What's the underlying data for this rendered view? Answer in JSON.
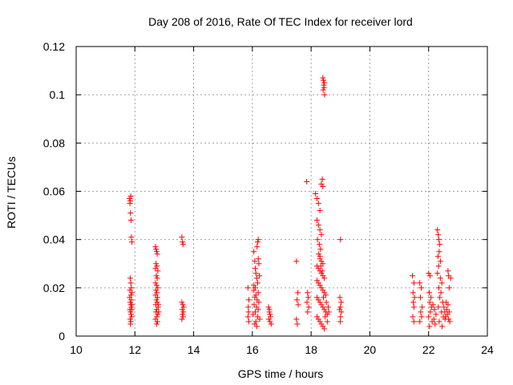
{
  "chart_data": {
    "type": "scatter",
    "title": "Day 208 of 2016, Rate Of TEC Index for receiver lord",
    "xlabel": "GPS time / hours",
    "ylabel": "ROTI / TECUs",
    "xlim": [
      10,
      24
    ],
    "ylim": [
      0,
      0.12
    ],
    "xticks": [
      "10",
      "12",
      "14",
      "16",
      "18",
      "20",
      "22",
      "24"
    ],
    "yticks": [
      "0",
      "0.02",
      "0.04",
      "0.06",
      "0.08",
      "0.1",
      "0.12"
    ],
    "grid": true,
    "marker": "+",
    "marker_color": "#ff0000",
    "series": [
      {
        "points": [
          [
            11.82,
            0.057
          ],
          [
            11.84,
            0.056
          ],
          [
            11.86,
            0.058
          ],
          [
            11.83,
            0.055
          ],
          [
            11.85,
            0.051
          ],
          [
            11.87,
            0.048
          ],
          [
            11.88,
            0.041
          ],
          [
            11.9,
            0.039
          ],
          [
            11.84,
            0.024
          ],
          [
            11.86,
            0.022
          ],
          [
            11.88,
            0.02
          ],
          [
            11.9,
            0.018
          ],
          [
            11.82,
            0.016
          ],
          [
            11.84,
            0.014
          ],
          [
            11.86,
            0.013
          ],
          [
            11.88,
            0.012
          ],
          [
            11.83,
            0.011
          ],
          [
            11.85,
            0.01
          ],
          [
            11.87,
            0.009
          ],
          [
            11.89,
            0.008
          ],
          [
            11.84,
            0.007
          ],
          [
            11.86,
            0.006
          ],
          [
            11.85,
            0.005
          ],
          [
            11.88,
            0.015
          ],
          [
            11.9,
            0.013
          ],
          [
            11.83,
            0.019
          ],
          [
            11.87,
            0.017
          ],
          [
            11.9,
            0.011
          ],
          [
            12.7,
            0.037
          ],
          [
            12.72,
            0.036
          ],
          [
            12.74,
            0.035
          ],
          [
            12.76,
            0.034
          ],
          [
            12.72,
            0.03
          ],
          [
            12.75,
            0.029
          ],
          [
            12.7,
            0.028
          ],
          [
            12.78,
            0.027
          ],
          [
            12.73,
            0.025
          ],
          [
            12.76,
            0.024
          ],
          [
            12.7,
            0.022
          ],
          [
            12.74,
            0.021
          ],
          [
            12.78,
            0.02
          ],
          [
            12.72,
            0.019
          ],
          [
            12.75,
            0.018
          ],
          [
            12.7,
            0.017
          ],
          [
            12.77,
            0.016
          ],
          [
            12.73,
            0.015
          ],
          [
            12.76,
            0.014
          ],
          [
            12.71,
            0.013
          ],
          [
            12.79,
            0.012
          ],
          [
            12.74,
            0.011
          ],
          [
            12.72,
            0.01
          ],
          [
            12.78,
            0.009
          ],
          [
            12.75,
            0.008
          ],
          [
            12.7,
            0.007
          ],
          [
            12.77,
            0.006
          ],
          [
            12.74,
            0.005
          ],
          [
            12.8,
            0.013
          ],
          [
            12.81,
            0.01
          ],
          [
            13.6,
            0.041
          ],
          [
            13.62,
            0.039
          ],
          [
            13.64,
            0.038
          ],
          [
            13.6,
            0.014
          ],
          [
            13.63,
            0.013
          ],
          [
            13.66,
            0.012
          ],
          [
            13.61,
            0.011
          ],
          [
            13.65,
            0.01
          ],
          [
            13.62,
            0.009
          ],
          [
            13.64,
            0.008
          ],
          [
            13.6,
            0.007
          ],
          [
            15.85,
            0.02
          ],
          [
            15.88,
            0.015
          ],
          [
            15.86,
            0.012
          ],
          [
            15.87,
            0.01
          ],
          [
            15.85,
            0.008
          ],
          [
            15.88,
            0.006
          ],
          [
            16.05,
            0.035
          ],
          [
            16.08,
            0.031
          ],
          [
            16.1,
            0.028
          ],
          [
            16.12,
            0.026
          ],
          [
            16.15,
            0.024
          ],
          [
            16.18,
            0.022
          ],
          [
            16.1,
            0.02
          ],
          [
            16.05,
            0.019
          ],
          [
            16.2,
            0.018
          ],
          [
            16.12,
            0.017
          ],
          [
            16.08,
            0.016
          ],
          [
            16.16,
            0.015
          ],
          [
            16.22,
            0.014
          ],
          [
            16.06,
            0.013
          ],
          [
            16.14,
            0.012
          ],
          [
            16.2,
            0.011
          ],
          [
            16.1,
            0.01
          ],
          [
            16.03,
            0.009
          ],
          [
            16.18,
            0.008
          ],
          [
            16.25,
            0.007
          ],
          [
            16.12,
            0.006
          ],
          [
            16.08,
            0.005
          ],
          [
            16.15,
            0.004
          ],
          [
            16.2,
            0.032
          ],
          [
            16.18,
            0.039
          ],
          [
            16.2,
            0.04
          ],
          [
            16.16,
            0.037
          ],
          [
            16.22,
            0.03
          ],
          [
            16.24,
            0.025
          ],
          [
            16.05,
            0.021
          ],
          [
            16.55,
            0.012
          ],
          [
            16.58,
            0.01
          ],
          [
            16.6,
            0.009
          ],
          [
            16.62,
            0.008
          ],
          [
            16.56,
            0.007
          ],
          [
            16.6,
            0.006
          ],
          [
            16.64,
            0.005
          ],
          [
            16.58,
            0.011
          ],
          [
            17.5,
            0.031
          ],
          [
            17.55,
            0.018
          ],
          [
            17.52,
            0.015
          ],
          [
            17.56,
            0.013
          ],
          [
            17.5,
            0.007
          ],
          [
            17.53,
            0.005
          ],
          [
            17.85,
            0.064
          ],
          [
            17.88,
            0.018
          ],
          [
            17.9,
            0.016
          ],
          [
            17.86,
            0.014
          ],
          [
            17.92,
            0.012
          ],
          [
            17.88,
            0.01
          ],
          [
            18.15,
            0.059
          ],
          [
            18.2,
            0.057
          ],
          [
            18.25,
            0.055
          ],
          [
            18.3,
            0.052
          ],
          [
            18.2,
            0.048
          ],
          [
            18.25,
            0.046
          ],
          [
            18.35,
            0.063
          ],
          [
            18.38,
            0.065
          ],
          [
            18.4,
            0.062
          ],
          [
            18.3,
            0.044
          ],
          [
            18.35,
            0.042
          ],
          [
            18.22,
            0.04
          ],
          [
            18.28,
            0.038
          ],
          [
            18.32,
            0.036
          ],
          [
            18.26,
            0.034
          ],
          [
            18.3,
            0.032
          ],
          [
            18.35,
            0.031
          ],
          [
            18.4,
            0.03
          ],
          [
            18.2,
            0.029
          ],
          [
            18.25,
            0.028
          ],
          [
            18.3,
            0.027
          ],
          [
            18.35,
            0.026
          ],
          [
            18.4,
            0.025
          ],
          [
            18.45,
            0.024
          ],
          [
            18.2,
            0.023
          ],
          [
            18.25,
            0.022
          ],
          [
            18.3,
            0.021
          ],
          [
            18.35,
            0.02
          ],
          [
            18.4,
            0.019
          ],
          [
            18.45,
            0.018
          ],
          [
            18.5,
            0.017
          ],
          [
            18.2,
            0.016
          ],
          [
            18.25,
            0.015
          ],
          [
            18.3,
            0.014
          ],
          [
            18.35,
            0.013
          ],
          [
            18.4,
            0.012
          ],
          [
            18.45,
            0.011
          ],
          [
            18.5,
            0.01
          ],
          [
            18.55,
            0.009
          ],
          [
            18.2,
            0.008
          ],
          [
            18.25,
            0.007
          ],
          [
            18.3,
            0.006
          ],
          [
            18.35,
            0.005
          ],
          [
            18.4,
            0.004
          ],
          [
            18.45,
            0.003
          ],
          [
            18.3,
            0.033
          ],
          [
            18.33,
            0.029
          ],
          [
            18.38,
            0.027
          ],
          [
            18.42,
            0.016
          ],
          [
            18.52,
            0.014
          ],
          [
            18.58,
            0.012
          ],
          [
            18.6,
            0.01
          ],
          [
            18.48,
            0.008
          ],
          [
            18.55,
            0.006
          ],
          [
            18.4,
            0.107
          ],
          [
            18.42,
            0.106
          ],
          [
            18.45,
            0.105
          ],
          [
            18.43,
            0.104
          ],
          [
            18.44,
            0.103
          ],
          [
            18.41,
            0.102
          ],
          [
            18.46,
            0.1
          ],
          [
            19.0,
            0.04
          ],
          [
            18.98,
            0.016
          ],
          [
            19.02,
            0.014
          ],
          [
            19.0,
            0.012
          ],
          [
            18.97,
            0.011
          ],
          [
            19.03,
            0.01
          ],
          [
            19.0,
            0.008
          ],
          [
            18.99,
            0.006
          ],
          [
            21.45,
            0.025
          ],
          [
            21.5,
            0.022
          ],
          [
            21.47,
            0.018
          ],
          [
            21.52,
            0.016
          ],
          [
            21.48,
            0.014
          ],
          [
            21.5,
            0.012
          ],
          [
            21.46,
            0.008
          ],
          [
            21.5,
            0.006
          ],
          [
            21.7,
            0.022
          ],
          [
            21.75,
            0.02
          ],
          [
            21.72,
            0.016
          ],
          [
            21.78,
            0.012
          ],
          [
            21.73,
            0.01
          ],
          [
            21.76,
            0.008
          ],
          [
            21.7,
            0.006
          ],
          [
            22.0,
            0.026
          ],
          [
            22.05,
            0.025
          ],
          [
            22.02,
            0.018
          ],
          [
            22.08,
            0.016
          ],
          [
            22.04,
            0.014
          ],
          [
            22.1,
            0.012
          ],
          [
            22.06,
            0.01
          ],
          [
            22.0,
            0.008
          ],
          [
            22.12,
            0.006
          ],
          [
            22.03,
            0.004
          ],
          [
            22.15,
            0.013
          ],
          [
            22.2,
            0.011
          ],
          [
            22.25,
            0.009
          ],
          [
            22.18,
            0.007
          ],
          [
            22.22,
            0.005
          ],
          [
            22.3,
            0.044
          ],
          [
            22.33,
            0.042
          ],
          [
            22.35,
            0.04
          ],
          [
            22.38,
            0.038
          ],
          [
            22.36,
            0.035
          ],
          [
            22.32,
            0.033
          ],
          [
            22.4,
            0.031
          ],
          [
            22.34,
            0.029
          ],
          [
            22.3,
            0.026
          ],
          [
            22.4,
            0.024
          ],
          [
            22.45,
            0.022
          ],
          [
            22.35,
            0.02
          ],
          [
            22.42,
            0.018
          ],
          [
            22.38,
            0.016
          ],
          [
            22.48,
            0.014
          ],
          [
            22.33,
            0.012
          ],
          [
            22.44,
            0.01
          ],
          [
            22.5,
            0.008
          ],
          [
            22.36,
            0.006
          ],
          [
            22.46,
            0.004
          ],
          [
            22.52,
            0.012
          ],
          [
            22.55,
            0.01
          ],
          [
            22.58,
            0.008
          ],
          [
            22.6,
            0.014
          ],
          [
            22.62,
            0.011
          ],
          [
            22.56,
            0.007
          ],
          [
            22.66,
            0.027
          ],
          [
            22.68,
            0.025
          ],
          [
            22.7,
            0.02
          ],
          [
            22.66,
            0.013
          ],
          [
            22.7,
            0.01
          ],
          [
            22.64,
            0.009
          ],
          [
            22.68,
            0.007
          ],
          [
            22.72,
            0.006
          ],
          [
            22.75,
            0.024
          ]
        ]
      }
    ]
  }
}
